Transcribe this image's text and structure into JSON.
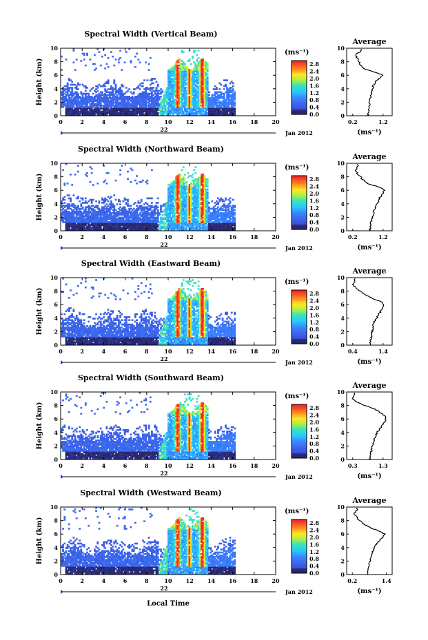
{
  "figure": {
    "date_label": "Jan 2012",
    "day_label": "22",
    "xlabel": "Local Time",
    "ylabel": "Height (km)",
    "colorbar_unit": "(ms⁻¹)",
    "avg_title": "Average",
    "avg_xlabel": "(ms⁻¹)"
  },
  "chart_data": [
    {
      "type": "heatmap",
      "title": "Spectral Width (Vertical Beam)",
      "xlabel": "Local Time",
      "ylabel": "Height (km)",
      "xlim": [
        0,
        20
      ],
      "ylim": [
        0,
        10
      ],
      "xticks": [
        "0",
        "2",
        "4",
        "6",
        "8",
        "10",
        "12",
        "14",
        "16",
        "18",
        "20"
      ],
      "yticks": [
        "0",
        "2",
        "4",
        "6",
        "8",
        "10"
      ],
      "colorbar": {
        "ticks": [
          "0.0",
          "0.4",
          "0.8",
          "1.2",
          "1.6",
          "2.0",
          "2.4",
          "2.8"
        ],
        "range": [
          0,
          3.0
        ]
      },
      "average_profile": {
        "title": "Average",
        "xlabel": "(ms⁻¹)",
        "xticks": [
          "0.2",
          "1.2"
        ],
        "xlim": [
          0.0,
          1.5
        ],
        "ylim": [
          0,
          10
        ],
        "height": [
          0,
          0.5,
          1,
          1.5,
          2,
          2.5,
          3,
          3.5,
          4,
          4.5,
          5,
          5.5,
          6,
          6.5,
          7,
          7.5,
          8,
          8.5,
          9,
          9.5,
          10
        ],
        "width": [
          0.7,
          0.72,
          0.73,
          0.75,
          0.76,
          0.78,
          0.8,
          0.82,
          0.85,
          0.88,
          0.95,
          1.05,
          1.2,
          0.9,
          0.55,
          0.45,
          0.4,
          0.35,
          0.3,
          0.45,
          0.5
        ]
      }
    },
    {
      "type": "heatmap",
      "title": "Spectral Width (Northward Beam)",
      "xlabel": "Local Time",
      "ylabel": "Height (km)",
      "xlim": [
        0,
        20
      ],
      "ylim": [
        0,
        10
      ],
      "xticks": [
        "0",
        "2",
        "4",
        "6",
        "8",
        "10",
        "12",
        "14",
        "16",
        "18",
        "20"
      ],
      "yticks": [
        "0",
        "2",
        "4",
        "6",
        "8",
        "10"
      ],
      "colorbar": {
        "ticks": [
          "0.0",
          "0.4",
          "0.8",
          "1.2",
          "1.6",
          "2.0",
          "2.4",
          "2.8"
        ],
        "range": [
          0,
          3.0
        ]
      },
      "average_profile": {
        "title": "Average",
        "xlabel": "(ms⁻¹)",
        "xticks": [
          "0.2",
          "1.2"
        ],
        "xlim": [
          0.0,
          1.5
        ],
        "ylim": [
          0,
          10
        ],
        "height": [
          0,
          0.5,
          1,
          1.5,
          2,
          2.5,
          3,
          3.5,
          4,
          4.5,
          5,
          5.5,
          6,
          6.5,
          7,
          7.5,
          8,
          8.5,
          9,
          9.5,
          10
        ],
        "width": [
          0.75,
          0.78,
          0.8,
          0.82,
          0.85,
          0.88,
          0.9,
          0.95,
          1.0,
          1.05,
          1.1,
          1.2,
          1.25,
          1.05,
          0.7,
          0.55,
          0.45,
          0.35,
          0.3,
          0.35,
          0.4
        ]
      }
    },
    {
      "type": "heatmap",
      "title": "Spectral Width (Eastward Beam)",
      "xlabel": "Local Time",
      "ylabel": "Height (km)",
      "xlim": [
        0,
        20
      ],
      "ylim": [
        0,
        10
      ],
      "xticks": [
        "0",
        "2",
        "4",
        "6",
        "8",
        "10",
        "12",
        "14",
        "16",
        "18",
        "20"
      ],
      "yticks": [
        "0",
        "2",
        "4",
        "6",
        "8",
        "10"
      ],
      "colorbar": {
        "ticks": [
          "0.0",
          "0.4",
          "0.8",
          "1.2",
          "1.6",
          "2.0",
          "2.4",
          "2.8"
        ],
        "range": [
          0,
          3.0
        ]
      },
      "average_profile": {
        "title": "Average",
        "xlabel": "(ms⁻¹)",
        "xticks": [
          "0.4",
          "1.4"
        ],
        "xlim": [
          0.2,
          1.7
        ],
        "ylim": [
          0,
          10
        ],
        "height": [
          0,
          0.5,
          1,
          1.5,
          2,
          2.5,
          3,
          3.5,
          4,
          4.5,
          5,
          5.5,
          6,
          6.5,
          7,
          7.5,
          8,
          8.5,
          9,
          9.5,
          10
        ],
        "width": [
          0.95,
          0.98,
          1.0,
          1.02,
          1.04,
          1.06,
          1.08,
          1.12,
          1.18,
          1.25,
          1.32,
          1.38,
          1.45,
          1.3,
          1.0,
          0.8,
          0.65,
          0.5,
          0.4,
          0.45,
          0.5
        ]
      }
    },
    {
      "type": "heatmap",
      "title": "Spectral Width (Southward Beam)",
      "xlabel": "Local Time",
      "ylabel": "Height (km)",
      "xlim": [
        0,
        20
      ],
      "ylim": [
        0,
        10
      ],
      "xticks": [
        "0",
        "2",
        "4",
        "6",
        "8",
        "10",
        "12",
        "14",
        "16",
        "18",
        "20"
      ],
      "yticks": [
        "0",
        "2",
        "4",
        "6",
        "8",
        "10"
      ],
      "colorbar": {
        "ticks": [
          "0.0",
          "0.4",
          "0.8",
          "1.2",
          "1.6",
          "2.0",
          "2.4",
          "2.8"
        ],
        "range": [
          0,
          3.0
        ]
      },
      "average_profile": {
        "title": "Average",
        "xlabel": "(ms⁻¹)",
        "xticks": [
          "0.3",
          "1.3"
        ],
        "xlim": [
          0.1,
          1.6
        ],
        "ylim": [
          0,
          10
        ],
        "height": [
          0,
          0.5,
          1,
          1.5,
          2,
          2.5,
          3,
          3.5,
          4,
          4.5,
          5,
          5.5,
          6,
          6.5,
          7,
          7.5,
          8,
          8.5,
          9,
          9.5,
          10
        ],
        "width": [
          0.85,
          0.88,
          0.9,
          0.92,
          0.95,
          0.98,
          1.0,
          1.05,
          1.1,
          1.2,
          1.28,
          1.35,
          1.4,
          1.35,
          1.2,
          1.0,
          0.7,
          0.45,
          0.3,
          0.35,
          0.4
        ]
      }
    },
    {
      "type": "heatmap",
      "title": "Spectral Width (Westward Beam)",
      "xlabel": "Local Time",
      "ylabel": "Height (km)",
      "xlim": [
        0,
        20
      ],
      "ylim": [
        0,
        10
      ],
      "xticks": [
        "0",
        "2",
        "4",
        "6",
        "8",
        "10",
        "12",
        "14",
        "16",
        "18",
        "20"
      ],
      "yticks": [
        "0",
        "2",
        "4",
        "6",
        "8",
        "10"
      ],
      "colorbar": {
        "ticks": [
          "0.0",
          "0.4",
          "0.8",
          "1.2",
          "1.6",
          "2.0",
          "2.4",
          "2.8"
        ],
        "range": [
          0,
          3.0
        ]
      },
      "average_profile": {
        "title": "Average",
        "xlabel": "(ms⁻¹)",
        "xticks": [
          "0.2",
          "1.4"
        ],
        "xlim": [
          0.0,
          1.6
        ],
        "ylim": [
          0,
          10
        ],
        "height": [
          0,
          0.5,
          1,
          1.5,
          2,
          2.5,
          3,
          3.5,
          4,
          4.5,
          5,
          5.5,
          6,
          6.5,
          7,
          7.5,
          8,
          8.5,
          9,
          9.5,
          10
        ],
        "width": [
          0.72,
          0.75,
          0.77,
          0.8,
          0.82,
          0.85,
          0.88,
          0.92,
          0.98,
          1.05,
          1.15,
          1.25,
          1.35,
          1.1,
          0.8,
          0.6,
          0.45,
          0.35,
          0.25,
          0.35,
          0.4
        ]
      }
    }
  ]
}
